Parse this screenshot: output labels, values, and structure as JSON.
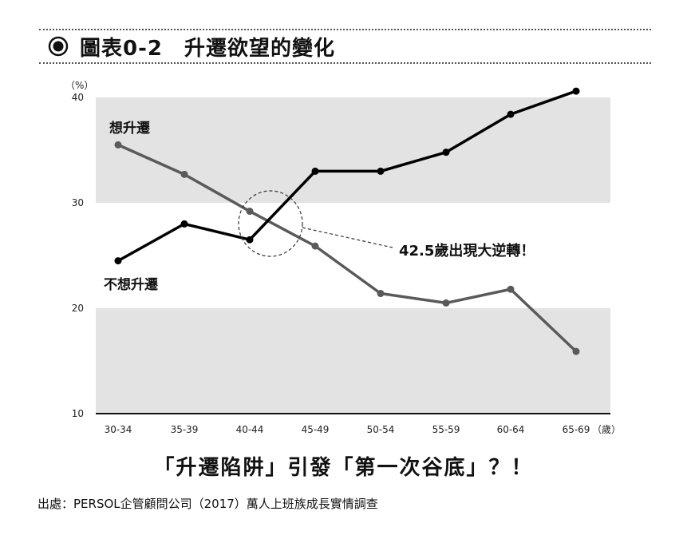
{
  "header": {
    "bullet_icon": "circle-bullet-icon",
    "title": "圖表0-2　升遷欲望的變化"
  },
  "chart_data": {
    "type": "line",
    "title": "圖表0-2　升遷欲望的變化",
    "ylabel": "（%）",
    "xunit": "（歲）",
    "categories": [
      "30-34",
      "35-39",
      "40-44",
      "45-49",
      "50-54",
      "55-59",
      "60-64",
      "65-69"
    ],
    "yticks": [
      10,
      20,
      30,
      40
    ],
    "ylim": [
      10,
      40
    ],
    "band_shading": [
      [
        30,
        40
      ],
      [
        10,
        20
      ]
    ],
    "series": [
      {
        "name": "想升遷",
        "color": "#000000",
        "values": [
          24.5,
          28.0,
          26.5,
          33.0,
          33.0,
          34.8,
          38.4,
          40.6
        ]
      },
      {
        "name": "不想升遷",
        "color": "#5a5a5a",
        "values": [
          35.5,
          32.7,
          29.2,
          25.9,
          21.4,
          20.5,
          21.8,
          15.9
        ]
      }
    ],
    "annotations": [
      {
        "text": "42.5歲出現大逆轉！"
      }
    ],
    "grid": false
  },
  "subtitle": "「升遷陷阱」引發「第一次谷底」？！",
  "source": "出處：PERSOL企管顧問公司（2017）萬人上班族成長實情調查"
}
